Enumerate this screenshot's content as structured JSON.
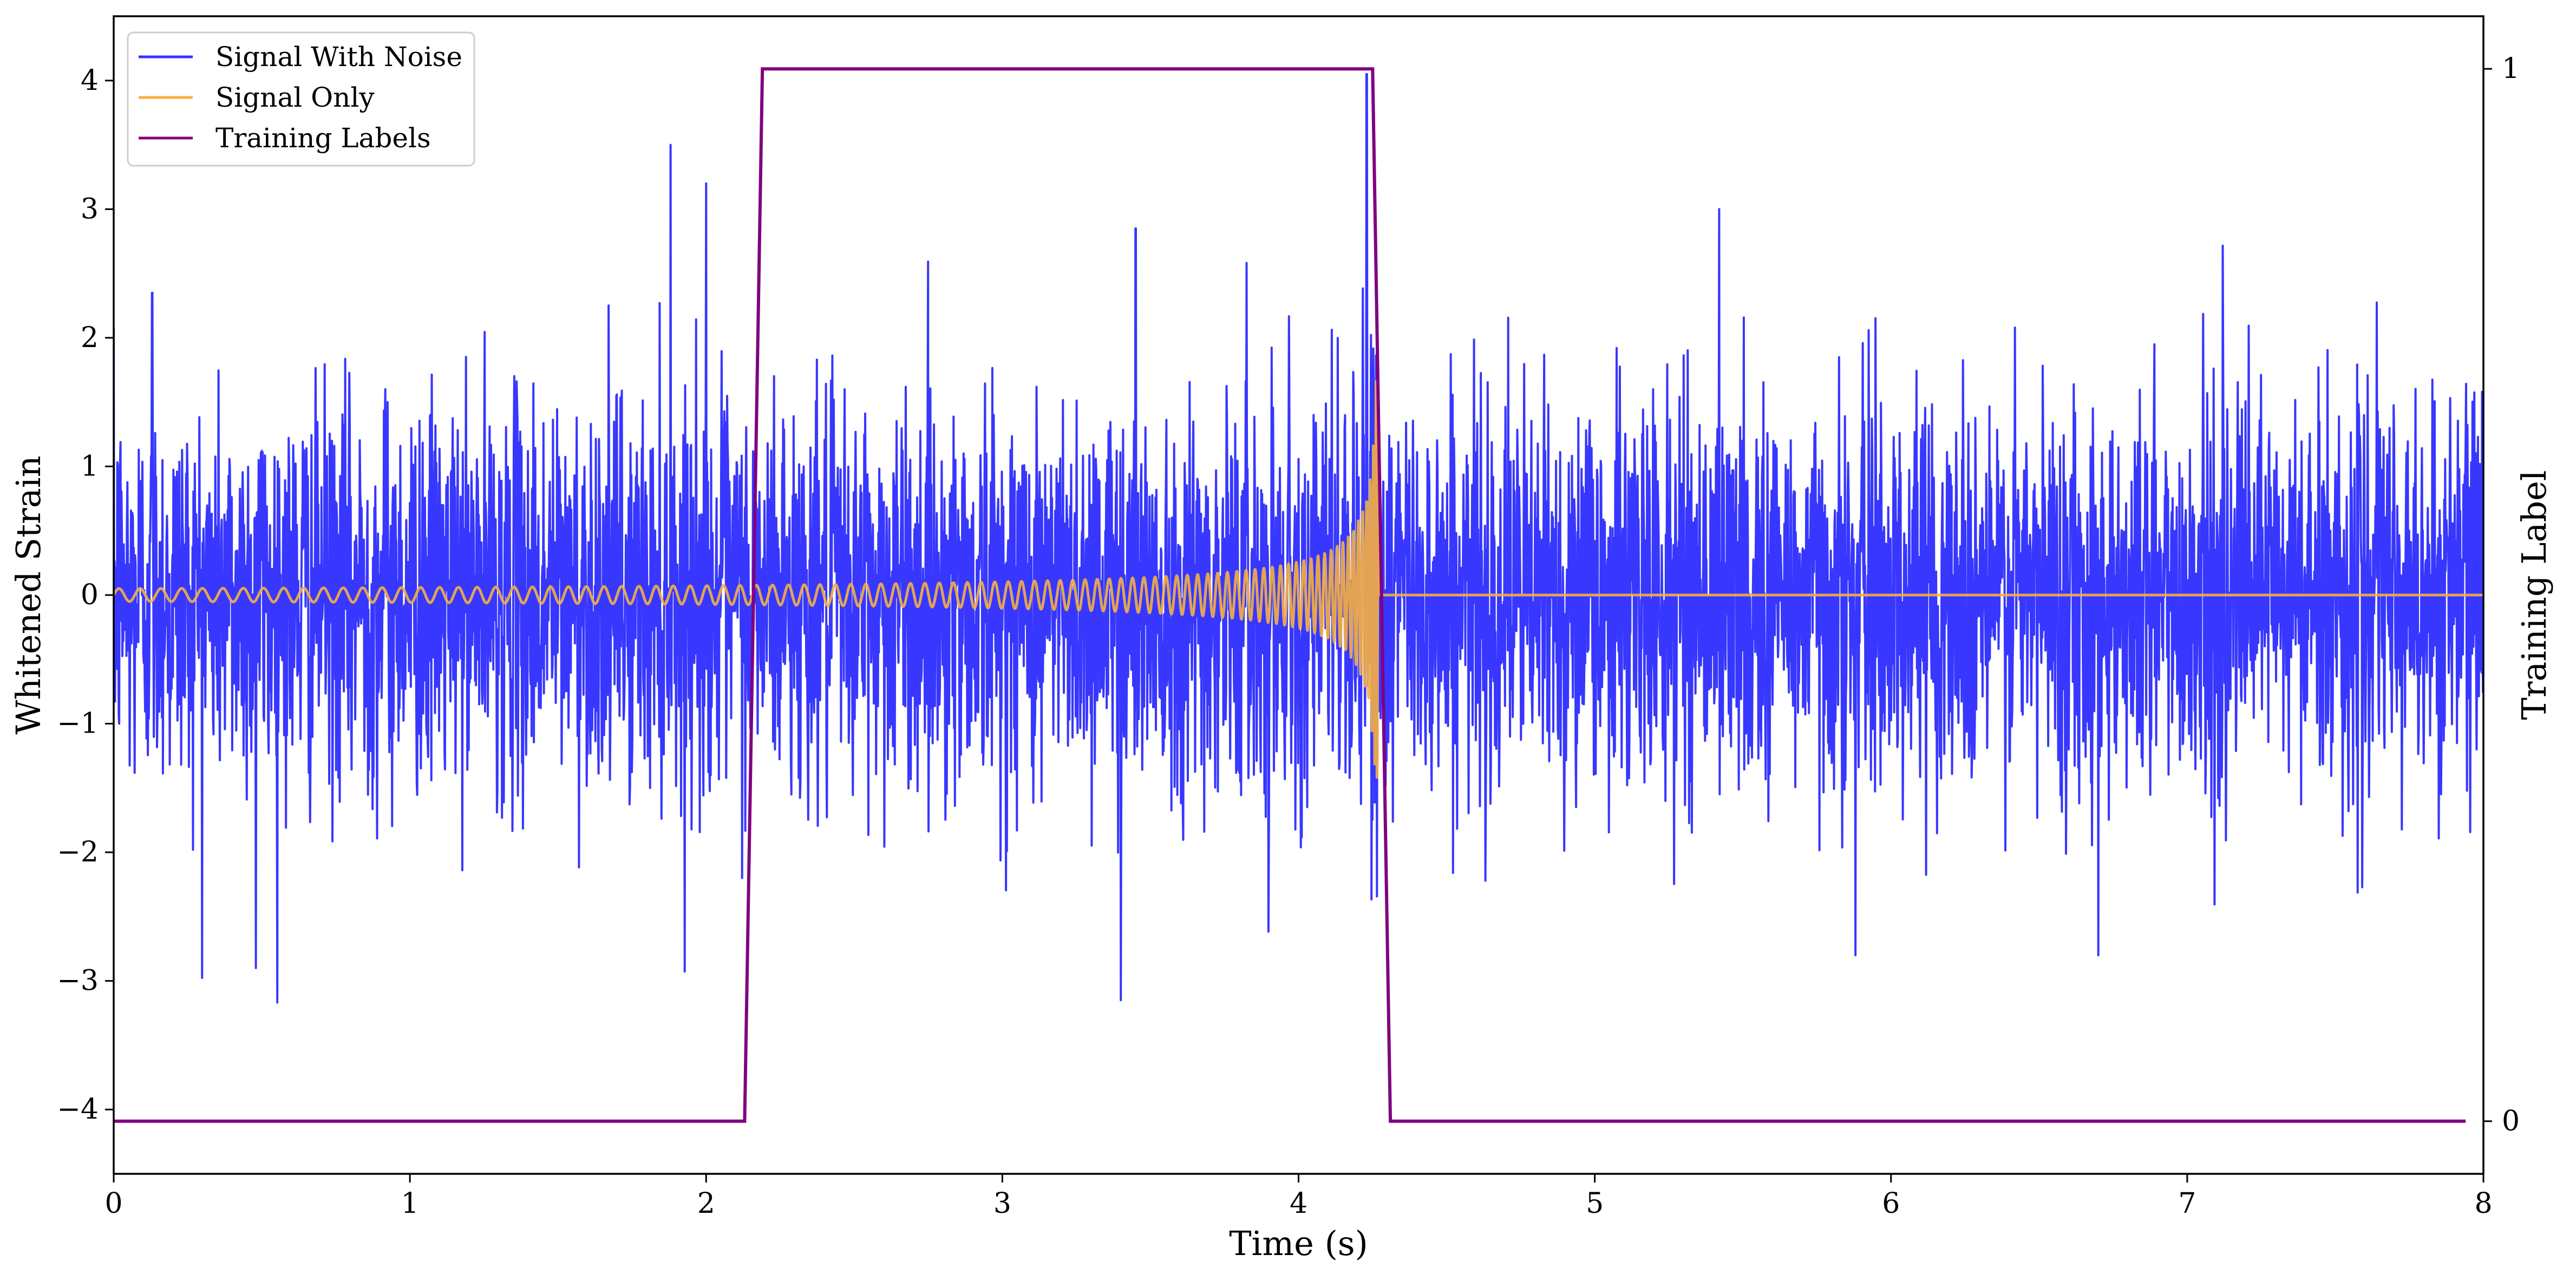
{
  "chart_data": {
    "type": "line",
    "title": "",
    "xlabel": "Time (s)",
    "ylabel": "Whitened Strain",
    "y2label": "Training Label",
    "xlim": [
      0,
      8
    ],
    "ylim": [
      -4.5,
      4.5
    ],
    "y2lim": [
      -0.05,
      1.05
    ],
    "x_ticks": [
      0,
      1,
      2,
      3,
      4,
      5,
      6,
      7,
      8
    ],
    "y_ticks": [
      -4,
      -3,
      -2,
      -1,
      0,
      1,
      2,
      3,
      4
    ],
    "y2_ticks": [
      0,
      1
    ],
    "grid": false,
    "legend_position": "top-left",
    "series": [
      {
        "name": "Signal With Noise",
        "axis": "left",
        "color": "#3333ff",
        "description_values": {
          "noise_std": 0.75,
          "notable_peaks": [
            {
              "x": 0.13,
              "y": 2.35
            },
            {
              "x": 0.48,
              "y": -2.9
            },
            {
              "x": 1.88,
              "y": 3.5
            },
            {
              "x": 2.0,
              "y": 3.2
            },
            {
              "x": 3.4,
              "y": -3.15
            },
            {
              "x": 3.45,
              "y": 2.85
            },
            {
              "x": 4.23,
              "y": 4.05
            },
            {
              "x": 5.42,
              "y": 3.0
            },
            {
              "x": 5.88,
              "y": -2.8
            },
            {
              "x": 6.7,
              "y": -2.8
            }
          ]
        }
      },
      {
        "name": "Signal Only",
        "axis": "left",
        "color": "#f5b041",
        "chirp": {
          "t_start": 0,
          "t_merge": 4.27,
          "amp_start": 0.05,
          "amp_peak": 1.75,
          "freq_start": 14,
          "freq_peak": 260
        }
      },
      {
        "name": "Training Labels",
        "axis": "right",
        "color": "#800080",
        "x": [
          0,
          2.13,
          2.19,
          4.25,
          4.31,
          7.94
        ],
        "y": [
          0,
          0,
          1,
          1,
          0,
          0
        ]
      }
    ]
  }
}
